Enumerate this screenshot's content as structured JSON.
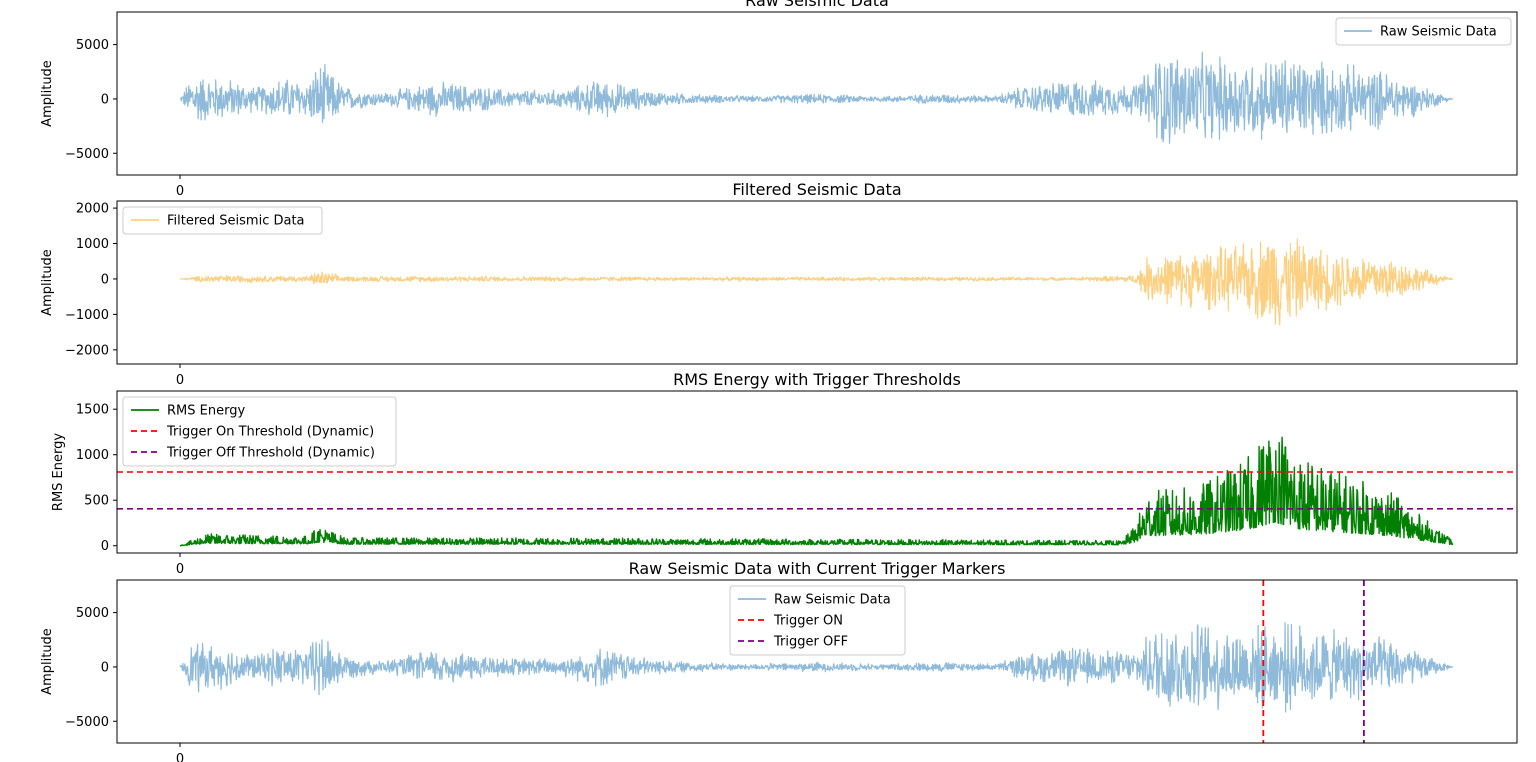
{
  "colors": {
    "raw": "#8fbad9",
    "filtered": "#fdd081",
    "rms": "#008000",
    "trigger_on": "#ff0000",
    "trigger_off": "#800080"
  },
  "chart_data": [
    {
      "type": "line",
      "title": "Raw Seismic Data",
      "ylabel": "Amplitude",
      "xticks": [
        "0"
      ],
      "yticks": [
        "5000",
        "0",
        "−5000"
      ],
      "ylim": [
        -7000,
        8000
      ],
      "legend": {
        "position": "top-right",
        "entries": [
          "Raw Seismic Data"
        ]
      },
      "grid": false,
      "series": [
        {
          "name": "Raw Seismic Data",
          "envelope": [
            [
              0,
              0
            ],
            [
              0.01,
              2600
            ],
            [
              0.04,
              2000
            ],
            [
              0.06,
              1200
            ],
            [
              0.08,
              2200
            ],
            [
              0.1,
              1800
            ],
            [
              0.11,
              3800
            ],
            [
              0.13,
              1200
            ],
            [
              0.16,
              600
            ],
            [
              0.2,
              1800
            ],
            [
              0.26,
              900
            ],
            [
              0.3,
              900
            ],
            [
              0.33,
              2000
            ],
            [
              0.37,
              800
            ],
            [
              0.4,
              500
            ],
            [
              0.45,
              300
            ],
            [
              0.5,
              500
            ],
            [
              0.55,
              300
            ],
            [
              0.6,
              500
            ],
            [
              0.64,
              300
            ],
            [
              0.66,
              1200
            ],
            [
              0.7,
              2000
            ],
            [
              0.75,
              1500
            ],
            [
              0.76,
              3000
            ],
            [
              0.77,
              5000
            ],
            [
              0.8,
              4500
            ],
            [
              0.84,
              4000
            ],
            [
              0.87,
              4500
            ],
            [
              0.9,
              3800
            ],
            [
              0.95,
              2800
            ],
            [
              1,
              0
            ]
          ]
        }
      ]
    },
    {
      "type": "line",
      "title": "Filtered Seismic Data",
      "ylabel": "Amplitude",
      "xticks": [
        "0"
      ],
      "yticks": [
        "2000",
        "1000",
        "0",
        "−1000",
        "−2000"
      ],
      "ylim": [
        -2400,
        2200
      ],
      "legend": {
        "position": "top-left",
        "entries": [
          "Filtered Seismic Data"
        ]
      },
      "grid": false,
      "series": [
        {
          "name": "Filtered Seismic Data",
          "envelope": [
            [
              0,
              0
            ],
            [
              0.02,
              120
            ],
            [
              0.1,
              90
            ],
            [
              0.11,
              250
            ],
            [
              0.13,
              80
            ],
            [
              0.2,
              90
            ],
            [
              0.4,
              60
            ],
            [
              0.65,
              60
            ],
            [
              0.7,
              50
            ],
            [
              0.75,
              120
            ],
            [
              0.76,
              700
            ],
            [
              0.8,
              900
            ],
            [
              0.84,
              1100
            ],
            [
              0.86,
              1600
            ],
            [
              0.89,
              1000
            ],
            [
              0.95,
              700
            ],
            [
              1,
              0
            ]
          ]
        }
      ]
    },
    {
      "type": "line",
      "title": "RMS Energy with Trigger Thresholds",
      "ylabel": "RMS Energy",
      "xticks": [
        "0"
      ],
      "yticks": [
        "1500",
        "1000",
        "500",
        "0"
      ],
      "ylim": [
        -80,
        1700
      ],
      "legend": {
        "position": "top-left",
        "entries": [
          "RMS Energy",
          "Trigger On Threshold (Dynamic)",
          "Trigger Off Threshold (Dynamic)"
        ]
      },
      "grid": false,
      "series": [
        {
          "name": "RMS Energy",
          "envelope": [
            [
              0,
              0
            ],
            [
              0.02,
              120
            ],
            [
              0.1,
              100
            ],
            [
              0.11,
              200
            ],
            [
              0.13,
              80
            ],
            [
              0.3,
              80
            ],
            [
              0.6,
              60
            ],
            [
              0.74,
              50
            ],
            [
              0.75,
              200
            ],
            [
              0.76,
              550
            ],
            [
              0.8,
              600
            ],
            [
              0.84,
              900
            ],
            [
              0.86,
              1300
            ],
            [
              0.88,
              900
            ],
            [
              0.95,
              550
            ],
            [
              1,
              50
            ]
          ]
        },
        {
          "name": "Trigger On Threshold (Dynamic)",
          "constant": 810
        },
        {
          "name": "Trigger Off Threshold (Dynamic)",
          "constant": 405
        }
      ]
    },
    {
      "type": "line",
      "title": "Raw Seismic Data with Current Trigger Markers",
      "ylabel": "Amplitude",
      "xticks": [
        "0"
      ],
      "yticks": [
        "5000",
        "0",
        "−5000"
      ],
      "ylim": [
        -7000,
        8000
      ],
      "legend": {
        "position": "upper-center",
        "entries": [
          "Raw Seismic Data",
          "Trigger ON",
          "Trigger OFF"
        ]
      },
      "grid": false,
      "series": [
        {
          "name": "Raw Seismic Data",
          "envelope": [
            [
              0,
              0
            ],
            [
              0.01,
              2600
            ],
            [
              0.04,
              2000
            ],
            [
              0.06,
              1200
            ],
            [
              0.08,
              2200
            ],
            [
              0.1,
              1800
            ],
            [
              0.11,
              3800
            ],
            [
              0.13,
              1200
            ],
            [
              0.16,
              600
            ],
            [
              0.2,
              1800
            ],
            [
              0.26,
              900
            ],
            [
              0.3,
              900
            ],
            [
              0.33,
              2000
            ],
            [
              0.37,
              800
            ],
            [
              0.4,
              500
            ],
            [
              0.45,
              300
            ],
            [
              0.5,
              500
            ],
            [
              0.55,
              300
            ],
            [
              0.6,
              500
            ],
            [
              0.64,
              300
            ],
            [
              0.66,
              1200
            ],
            [
              0.7,
              2000
            ],
            [
              0.75,
              1500
            ],
            [
              0.76,
              3000
            ],
            [
              0.77,
              5000
            ],
            [
              0.8,
              4500
            ],
            [
              0.84,
              4000
            ],
            [
              0.87,
              4500
            ],
            [
              0.9,
              3800
            ],
            [
              0.95,
              2800
            ],
            [
              1,
              0
            ]
          ]
        }
      ],
      "markers": {
        "trigger_on_x": 0.851,
        "trigger_off_x": 0.93
      }
    }
  ]
}
